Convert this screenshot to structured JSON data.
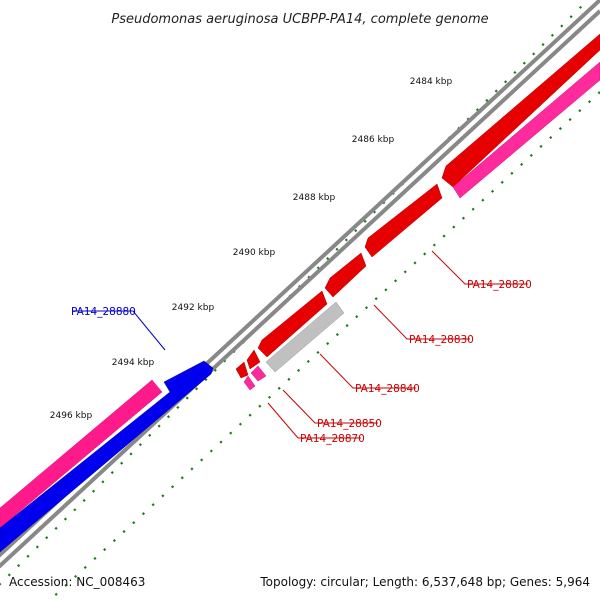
{
  "header": {
    "title": "Pseudomonas aeruginosa UCBPP-PA14, complete genome"
  },
  "footer": {
    "accession": "Accession: NC_008463",
    "summary": "Topology: circular; Length: 6,537,648 bp; Genes: 5,964"
  },
  "colors": {
    "backbone": "#888888",
    "forward_cds": "#e60000",
    "forward_gene": "#ff2a9b",
    "reverse_cds": "#0000ee",
    "reverse_gene": "#ff1a8c",
    "pseudo_or_other": "#c0c0c0",
    "tick_mark": "#1a7a1a",
    "forward_label": "#cc0000",
    "reverse_label": "#0000cc"
  },
  "scale_ticks": [
    {
      "label": "2484 kbp"
    },
    {
      "label": "2486 kbp"
    },
    {
      "label": "2488 kbp"
    },
    {
      "label": "2490 kbp"
    },
    {
      "label": "2492 kbp"
    },
    {
      "label": "2494 kbp"
    },
    {
      "label": "2496 kbp"
    }
  ],
  "gene_labels": [
    {
      "name": "PA14_28820",
      "strand": "forward"
    },
    {
      "name": "PA14_28830",
      "strand": "forward"
    },
    {
      "name": "PA14_28840",
      "strand": "forward"
    },
    {
      "name": "PA14_28850",
      "strand": "forward"
    },
    {
      "name": "PA14_28870",
      "strand": "forward"
    },
    {
      "name": "PA14_28880",
      "strand": "reverse"
    }
  ]
}
